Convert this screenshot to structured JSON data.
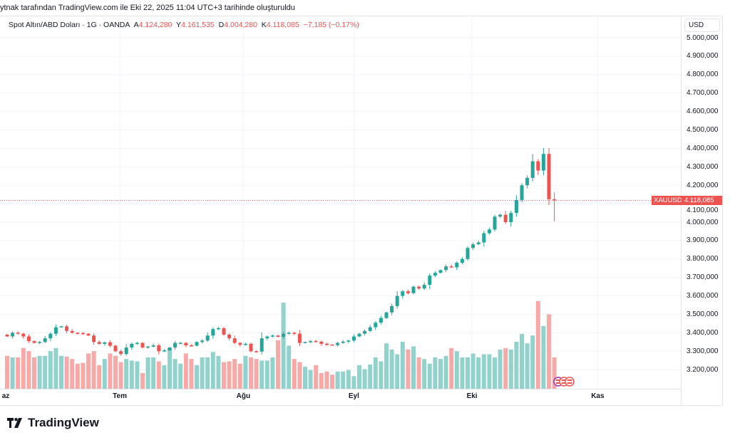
{
  "caption": "ytnak tarafından TradingView.com ile Eki 22, 2025 11:04 UTC+3 tarihinde oluşturuldu",
  "legend": {
    "title": "Spot Altın/ABD Doları · 1G · OANDA",
    "o_label": "A",
    "o": "4.124,280",
    "h_label": "Y",
    "h": "4.161,535",
    "l_label": "D",
    "l": "4.004,280",
    "c_label": "K",
    "c": "4.118,085",
    "change": "−7,185 (−0,17%)"
  },
  "currency": "USD",
  "symbol_tag": "XAUUSD",
  "price_tag": "4.118,085",
  "logo": "TradingView",
  "colors": {
    "up": "#26a69a",
    "down": "#ef5350",
    "vol_up": "#92d2cc",
    "vol_down": "#f7a9a7"
  },
  "chart_data": {
    "type": "candlestick",
    "price_ticks": [
      "5.000,000",
      "4.900,000",
      "4.800,000",
      "4.700,000",
      "4.600,000",
      "4.500,000",
      "4.400,000",
      "4.300,000",
      "4.200,000",
      "4.100,000",
      "4.000,000",
      "3.900,000",
      "3.800,000",
      "3.700,000",
      "3.600,000",
      "3.500,000",
      "3.400,000",
      "3.300,000",
      "3.200,000"
    ],
    "price_tick_values": [
      5000,
      4900,
      4800,
      4700,
      4600,
      4500,
      4400,
      4300,
      4200,
      4100,
      4000,
      3900,
      3800,
      3700,
      3600,
      3500,
      3400,
      3300,
      3200
    ],
    "months": [
      {
        "label": "az",
        "bar": 0
      },
      {
        "label": "Tem",
        "bar": 20.8
      },
      {
        "label": "Ağu",
        "bar": 43.6
      },
      {
        "label": "Eyl",
        "bar": 64
      },
      {
        "label": "Eki",
        "bar": 85.8
      },
      {
        "label": "Kas",
        "bar": 109
      }
    ],
    "closes": [
      3380,
      3400,
      3395,
      3380,
      3355,
      3345,
      3350,
      3370,
      3395,
      3430,
      3435,
      3410,
      3400,
      3398,
      3395,
      3385,
      3350,
      3340,
      3348,
      3330,
      3300,
      3285,
      3320,
      3340,
      3345,
      3320,
      3325,
      3332,
      3300,
      3305,
      3320,
      3345,
      3345,
      3332,
      3330,
      3350,
      3358,
      3385,
      3420,
      3425,
      3390,
      3370,
      3345,
      3335,
      3340,
      3300,
      3298,
      3370,
      3380,
      3385,
      3378,
      3395,
      3400,
      3395,
      3345,
      3350,
      3355,
      3352,
      3340,
      3336,
      3333,
      3345,
      3352,
      3358,
      3380,
      3395,
      3410,
      3430,
      3455,
      3480,
      3510,
      3545,
      3600,
      3625,
      3615,
      3650,
      3640,
      3660,
      3710,
      3725,
      3740,
      3760,
      3755,
      3780,
      3800,
      3860,
      3880,
      3890,
      3940,
      3960,
      4030,
      4040,
      4000,
      4050,
      4120,
      4200,
      4240,
      4330,
      4280,
      4370,
      4124.28
    ],
    "last_bar": {
      "open": 4124.28,
      "high": 4161.535,
      "low": 4004.28,
      "close": 4118.085
    },
    "volumes": [
      42,
      40,
      40,
      52,
      48,
      40,
      42,
      42,
      48,
      52,
      42,
      41,
      38,
      32,
      33,
      45,
      48,
      30,
      38,
      45,
      42,
      34,
      38,
      36,
      35,
      20,
      40,
      40,
      35,
      30,
      52,
      38,
      32,
      45,
      38,
      30,
      40,
      40,
      47,
      42,
      34,
      35,
      38,
      32,
      42,
      40,
      38,
      36,
      36,
      40,
      62,
      110,
      55,
      38,
      34,
      28,
      24,
      30,
      20,
      22,
      18,
      22,
      22,
      24,
      16,
      30,
      25,
      31,
      40,
      35,
      58,
      50,
      44,
      60,
      50,
      54,
      40,
      38,
      32,
      40,
      38,
      42,
      52,
      48,
      40,
      40,
      45,
      40,
      44,
      44,
      40,
      50,
      52,
      50,
      60,
      70,
      58,
      68,
      112,
      80,
      95,
      40
    ],
    "current_price": 4118.085
  }
}
